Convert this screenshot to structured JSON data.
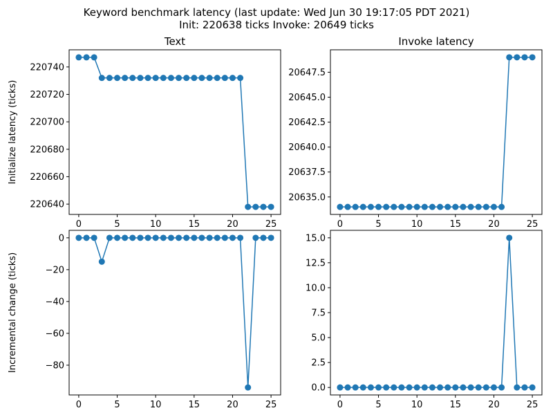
{
  "title_line1": "Keyword benchmark latency (last update: Wed Jun 30 19:17:05 PDT 2021)",
  "title_line2": "Init: 220638 ticks Invoke: 20649 ticks",
  "chart_data": [
    {
      "type": "line",
      "title": "Text",
      "xlabel": "",
      "ylabel": "Initialize latency (ticks)",
      "x": [
        0,
        1,
        2,
        3,
        4,
        5,
        6,
        7,
        8,
        9,
        10,
        11,
        12,
        13,
        14,
        15,
        16,
        17,
        18,
        19,
        20,
        21,
        22,
        23,
        24,
        25
      ],
      "values": [
        220747,
        220747,
        220747,
        220732,
        220732,
        220732,
        220732,
        220732,
        220732,
        220732,
        220732,
        220732,
        220732,
        220732,
        220732,
        220732,
        220732,
        220732,
        220732,
        220732,
        220732,
        220732,
        220638,
        220638,
        220638,
        220638
      ],
      "xlim": [
        -1.25,
        26.25
      ],
      "ylim": [
        220632.5,
        220752.5
      ],
      "xticks": [
        0,
        5,
        10,
        15,
        20,
        25
      ],
      "yticks": [
        220640,
        220660,
        220680,
        220700,
        220720,
        220740
      ],
      "ytick_labels": [
        "220640",
        "220660",
        "220680",
        "220700",
        "220720",
        "220740"
      ],
      "grid": false,
      "marker": "circle"
    },
    {
      "type": "line",
      "title": "Invoke latency",
      "xlabel": "",
      "ylabel": "",
      "x": [
        0,
        1,
        2,
        3,
        4,
        5,
        6,
        7,
        8,
        9,
        10,
        11,
        12,
        13,
        14,
        15,
        16,
        17,
        18,
        19,
        20,
        21,
        22,
        23,
        24,
        25
      ],
      "values": [
        20634,
        20634,
        20634,
        20634,
        20634,
        20634,
        20634,
        20634,
        20634,
        20634,
        20634,
        20634,
        20634,
        20634,
        20634,
        20634,
        20634,
        20634,
        20634,
        20634,
        20634,
        20634,
        20649,
        20649,
        20649,
        20649
      ],
      "xlim": [
        -1.25,
        26.25
      ],
      "ylim": [
        20633.25,
        20649.75
      ],
      "xticks": [
        0,
        5,
        10,
        15,
        20,
        25
      ],
      "yticks": [
        20635.0,
        20637.5,
        20640.0,
        20642.5,
        20645.0,
        20647.5
      ],
      "ytick_labels": [
        "20635.0",
        "20637.5",
        "20640.0",
        "20642.5",
        "20645.0",
        "20647.5"
      ],
      "grid": false,
      "marker": "circle"
    },
    {
      "type": "line",
      "title": "",
      "xlabel": "",
      "ylabel": "Incremental change (ticks)",
      "x": [
        0,
        1,
        2,
        3,
        4,
        5,
        6,
        7,
        8,
        9,
        10,
        11,
        12,
        13,
        14,
        15,
        16,
        17,
        18,
        19,
        20,
        21,
        22,
        23,
        24,
        25
      ],
      "values": [
        0,
        0,
        0,
        -15,
        0,
        0,
        0,
        0,
        0,
        0,
        0,
        0,
        0,
        0,
        0,
        0,
        0,
        0,
        0,
        0,
        0,
        0,
        -94,
        0,
        0,
        0
      ],
      "xlim": [
        -1.25,
        26.25
      ],
      "ylim": [
        -98.7,
        4.7
      ],
      "xticks": [
        0,
        5,
        10,
        15,
        20,
        25
      ],
      "yticks": [
        -80,
        -60,
        -40,
        -20,
        0
      ],
      "ytick_labels": [
        "−80",
        "−60",
        "−40",
        "−20",
        "0"
      ],
      "grid": false,
      "marker": "circle"
    },
    {
      "type": "line",
      "title": "",
      "xlabel": "",
      "ylabel": "",
      "x": [
        0,
        1,
        2,
        3,
        4,
        5,
        6,
        7,
        8,
        9,
        10,
        11,
        12,
        13,
        14,
        15,
        16,
        17,
        18,
        19,
        20,
        21,
        22,
        23,
        24,
        25
      ],
      "values": [
        0,
        0,
        0,
        0,
        0,
        0,
        0,
        0,
        0,
        0,
        0,
        0,
        0,
        0,
        0,
        0,
        0,
        0,
        0,
        0,
        0,
        0,
        15,
        0,
        0,
        0
      ],
      "xlim": [
        -1.25,
        26.25
      ],
      "ylim": [
        -0.75,
        15.75
      ],
      "xticks": [
        0,
        5,
        10,
        15,
        20,
        25
      ],
      "yticks": [
        0.0,
        2.5,
        5.0,
        7.5,
        10.0,
        12.5,
        15.0
      ],
      "ytick_labels": [
        "0.0",
        "2.5",
        "5.0",
        "7.5",
        "10.0",
        "12.5",
        "15.0"
      ],
      "grid": false,
      "marker": "circle"
    }
  ]
}
